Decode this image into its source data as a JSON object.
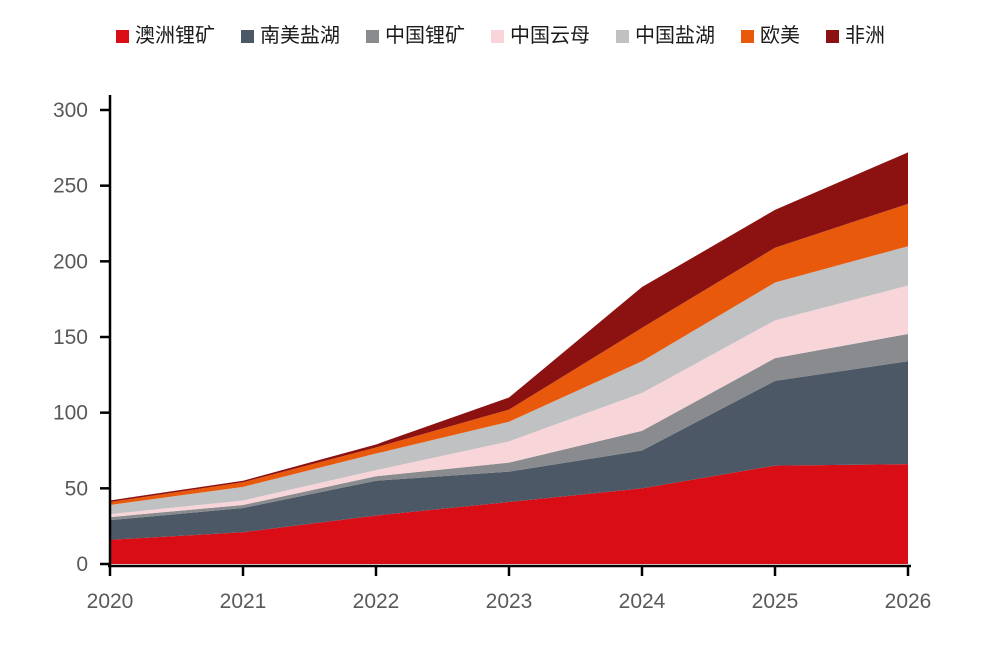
{
  "chart_data": {
    "type": "area",
    "stacked": true,
    "title": "",
    "xlabel": "",
    "ylabel": "",
    "categories": [
      "2020",
      "2021",
      "2022",
      "2023",
      "2024",
      "2025",
      "2026"
    ],
    "series": [
      {
        "name": "澳洲锂矿",
        "color": "#D90D15",
        "values": [
          16,
          21,
          32,
          41,
          50,
          65,
          66
        ]
      },
      {
        "name": "南美盐湖",
        "color": "#4D5867",
        "values": [
          13,
          16,
          23,
          20,
          25,
          56,
          68
        ]
      },
      {
        "name": "中国锂矿",
        "color": "#898B8E",
        "values": [
          2,
          2,
          3,
          6,
          13,
          15,
          18
        ]
      },
      {
        "name": "中国云母",
        "color": "#F7D5D9",
        "values": [
          2,
          3,
          4,
          14,
          25,
          25,
          32
        ]
      },
      {
        "name": "中国盐湖",
        "color": "#BFC1C3",
        "values": [
          6,
          9,
          11,
          13,
          21,
          25,
          26
        ]
      },
      {
        "name": "欧美",
        "color": "#E8590C",
        "values": [
          2,
          3,
          4,
          8,
          22,
          23,
          28
        ]
      },
      {
        "name": "非洲",
        "color": "#8C1212",
        "values": [
          1,
          1,
          2,
          8,
          27,
          25,
          34
        ]
      }
    ],
    "totals": [
      42,
      55,
      79,
      110,
      183,
      234,
      272
    ],
    "ylim": [
      0,
      300
    ],
    "yticks": [
      0,
      50,
      100,
      150,
      200,
      250,
      300
    ],
    "grid": false,
    "legend_position": "top",
    "axis_color": "#000000",
    "tick_label_color": "#595959"
  }
}
